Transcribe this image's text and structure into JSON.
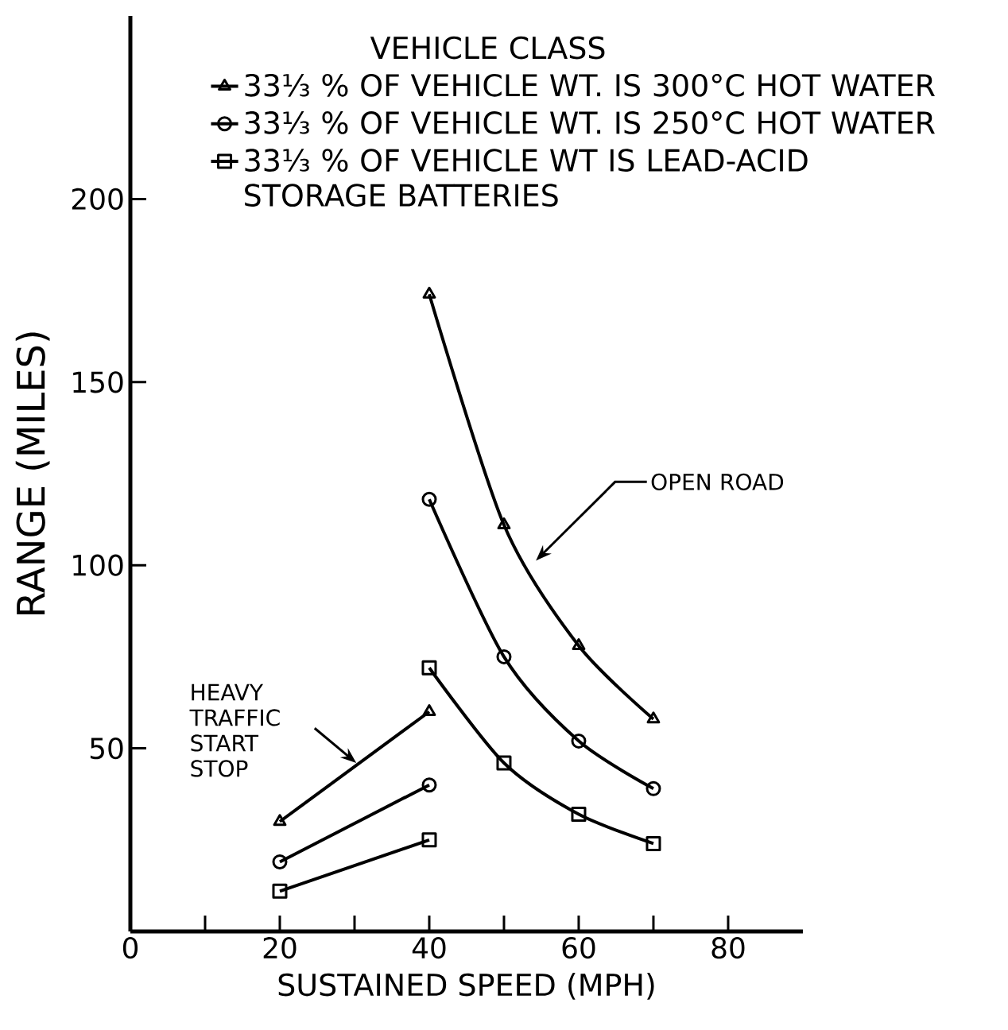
{
  "chart_data": {
    "type": "line",
    "xlabel": "SUSTAINED SPEED (MPH)",
    "ylabel": "RANGE (MILES)",
    "legend_title": "VEHICLE CLASS",
    "legend": "top",
    "grid": false,
    "line_style": "solid",
    "xlim": [
      0,
      90
    ],
    "ylim": [
      0,
      250
    ],
    "xticks": [
      0,
      {
        "value": 10,
        "label": null
      },
      20,
      {
        "value": 30,
        "label": null
      },
      40,
      {
        "value": 50,
        "label": null
      },
      60,
      {
        "value": 70,
        "label": null
      },
      80
    ],
    "yticks": [
      50,
      100,
      150,
      200
    ],
    "series": [
      {
        "name": "33⅓ % OF VEHICLE WT. IS 300°C HOT WATER",
        "color": "#000000",
        "marker": "triangle",
        "x": [
          40,
          50,
          60,
          70
        ],
        "values": [
          174,
          111,
          78,
          58
        ]
      },
      {
        "name": "33⅓ % OF VEHICLE WT. IS 250°C HOT WATER",
        "color": "#000000",
        "marker": "circle",
        "x": [
          40,
          50,
          60,
          70
        ],
        "values": [
          118,
          75,
          52,
          39
        ]
      },
      {
        "name": "33⅓ % OF VEHICLE WT IS LEAD-ACID STORAGE BATTERIES",
        "color": "#000000",
        "marker": "square",
        "x": [
          40,
          50,
          60,
          70
        ],
        "values": [
          72,
          46,
          32,
          24
        ]
      },
      {
        "color": "#000000",
        "marker": "triangle",
        "x": [
          20,
          40
        ],
        "values": [
          30,
          60
        ]
      },
      {
        "color": "#000000",
        "marker": "circle",
        "x": [
          20,
          40
        ],
        "values": [
          19,
          40
        ]
      },
      {
        "color": "#000000",
        "marker": "square",
        "x": [
          20,
          40
        ],
        "values": [
          11,
          25
        ]
      }
    ],
    "annotations": [
      "OPEN ROAD",
      "HEAVY TRAFFIC START STOP"
    ]
  }
}
